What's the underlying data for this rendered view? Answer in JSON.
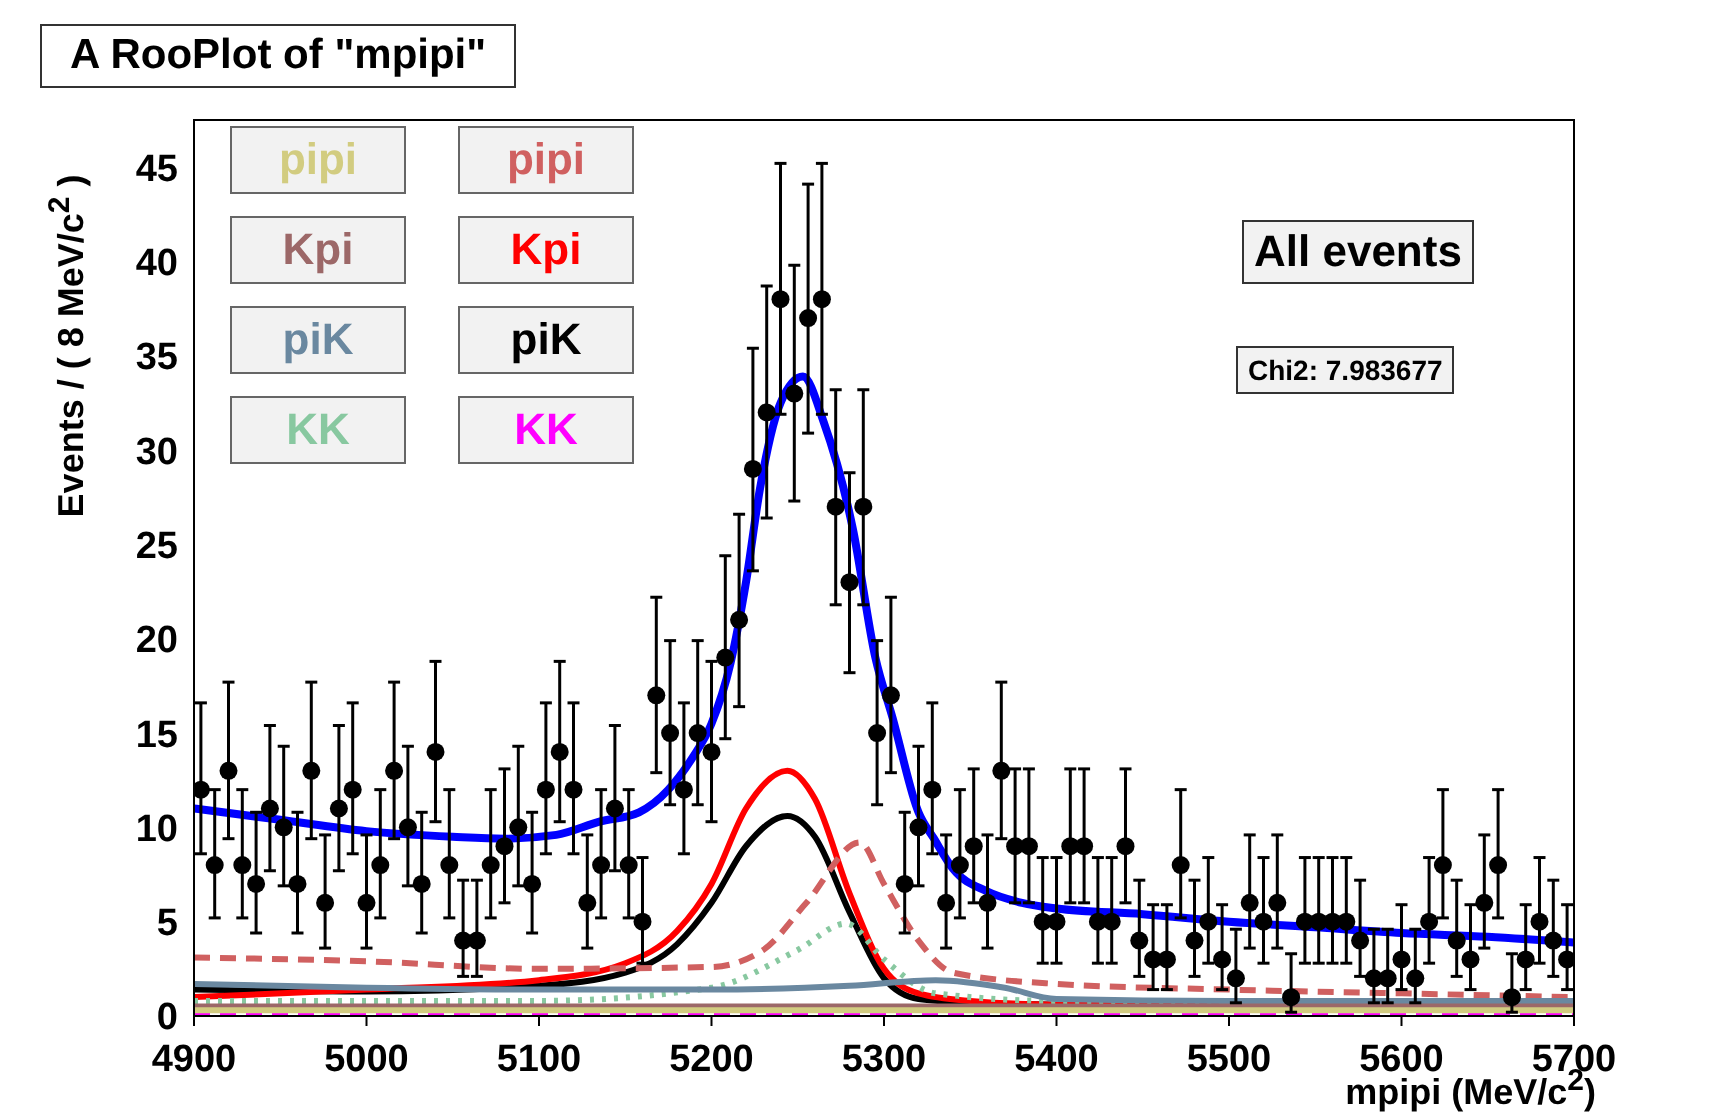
{
  "chart_data": {
    "type": "scatter",
    "title": "A RooPlot of \"mpipi\"",
    "xlabel": "mpipi (MeV/c$^{2}$)",
    "ylabel": "Events / ( 8 MeV/c$^{2}$ )",
    "xlim": [
      4900,
      5700
    ],
    "xticks": [
      4900,
      5000,
      5100,
      5200,
      5300,
      5400,
      5500,
      5600,
      5700
    ],
    "ylim": [
      0,
      47.5
    ],
    "yticks": [
      0,
      5,
      10,
      15,
      20,
      25,
      30,
      35,
      40,
      45
    ],
    "legend": "top left",
    "annotations": [
      "All events",
      "Chi2: 7.983677"
    ],
    "series": [
      {
        "marker": "circle",
        "color": "#000000",
        "x": [
          4904,
          4912,
          4920,
          4928,
          4936,
          4944,
          4952,
          4960,
          4968,
          4976,
          4984,
          4992,
          5000,
          5008,
          5016,
          5024,
          5032,
          5040,
          5048,
          5056,
          5064,
          5072,
          5080,
          5088,
          5096,
          5104,
          5112,
          5120,
          5128,
          5136,
          5144,
          5152,
          5160,
          5168,
          5176,
          5184,
          5192,
          5200,
          5208,
          5216,
          5224,
          5232,
          5240,
          5248,
          5256,
          5264,
          5272,
          5280,
          5288,
          5296,
          5304,
          5312,
          5320,
          5328,
          5336,
          5344,
          5352,
          5360,
          5368,
          5376,
          5384,
          5392,
          5400,
          5408,
          5416,
          5424,
          5432,
          5440,
          5448,
          5456,
          5464,
          5472,
          5480,
          5488,
          5496,
          5504,
          5512,
          5520,
          5528,
          5536,
          5544,
          5552,
          5560,
          5568,
          5576,
          5584,
          5592,
          5600,
          5608,
          5616,
          5624,
          5632,
          5640,
          5648,
          5656,
          5664,
          5672,
          5680,
          5688,
          5696
        ],
        "values": [
          12,
          8,
          13,
          8,
          7,
          11,
          10,
          7,
          13,
          6,
          11,
          12,
          6,
          8,
          13,
          10,
          7,
          14,
          8,
          4,
          4,
          8,
          9,
          10,
          7,
          12,
          14,
          12,
          6,
          8,
          11,
          8,
          5,
          17,
          15,
          12,
          15,
          14,
          19,
          21,
          29,
          32,
          38,
          33,
          37,
          38,
          27,
          23,
          27,
          15,
          17,
          7,
          10,
          12,
          6,
          8,
          9,
          6,
          13,
          9,
          9,
          5,
          5,
          9,
          9,
          5,
          5,
          9,
          4,
          3,
          3,
          8,
          4,
          5,
          3,
          2,
          6,
          5,
          6,
          1,
          5,
          5,
          5,
          5,
          4,
          2,
          2,
          3,
          2,
          5,
          8,
          4,
          3,
          6,
          8,
          1,
          3,
          5,
          4,
          3
        ],
        "errors": [
          [
            8.6,
            16.6
          ],
          [
            5.2,
            12.0
          ],
          [
            9.4,
            17.7
          ],
          [
            5.2,
            12.0
          ],
          [
            4.4,
            10.8
          ],
          [
            7.7,
            15.4
          ],
          [
            6.9,
            14.3
          ],
          [
            4.4,
            10.8
          ],
          [
            9.4,
            17.7
          ],
          [
            3.6,
            9.6
          ],
          [
            7.7,
            15.4
          ],
          [
            8.6,
            16.6
          ],
          [
            3.6,
            9.6
          ],
          [
            5.2,
            12.0
          ],
          [
            9.4,
            17.7
          ],
          [
            6.9,
            14.3
          ],
          [
            4.4,
            10.8
          ],
          [
            10.3,
            18.8
          ],
          [
            5.2,
            12.0
          ],
          [
            2.1,
            7.2
          ],
          [
            2.1,
            7.2
          ],
          [
            5.2,
            12.0
          ],
          [
            6.0,
            13.1
          ],
          [
            6.9,
            14.3
          ],
          [
            4.4,
            10.8
          ],
          [
            8.6,
            16.6
          ],
          [
            10.3,
            18.8
          ],
          [
            8.6,
            16.6
          ],
          [
            3.6,
            9.6
          ],
          [
            5.2,
            12.0
          ],
          [
            7.7,
            15.4
          ],
          [
            5.2,
            12.0
          ],
          [
            2.8,
            8.4
          ],
          [
            12.9,
            22.2
          ],
          [
            11.2,
            19.9
          ],
          [
            8.6,
            16.6
          ],
          [
            11.2,
            19.9
          ],
          [
            10.3,
            18.8
          ],
          [
            14.7,
            24.4
          ],
          [
            16.4,
            26.6
          ],
          [
            23.6,
            35.4
          ],
          [
            26.4,
            38.7
          ],
          [
            31.9,
            45.2
          ],
          [
            27.3,
            39.8
          ],
          [
            30.9,
            44.1
          ],
          [
            31.9,
            45.2
          ],
          [
            21.8,
            33.2
          ],
          [
            18.2,
            28.8
          ],
          [
            21.8,
            33.2
          ],
          [
            11.2,
            19.9
          ],
          [
            12.9,
            22.2
          ],
          [
            4.4,
            10.8
          ],
          [
            6.9,
            14.3
          ],
          [
            8.6,
            16.6
          ],
          [
            3.6,
            9.6
          ],
          [
            5.2,
            12.0
          ],
          [
            6.0,
            13.1
          ],
          [
            3.6,
            9.6
          ],
          [
            9.4,
            17.7
          ],
          [
            6.0,
            13.1
          ],
          [
            6.0,
            13.1
          ],
          [
            2.8,
            8.4
          ],
          [
            2.8,
            8.4
          ],
          [
            6.0,
            13.1
          ],
          [
            6.0,
            13.1
          ],
          [
            2.8,
            8.4
          ],
          [
            2.8,
            8.4
          ],
          [
            6.0,
            13.1
          ],
          [
            2.1,
            7.2
          ],
          [
            1.4,
            5.9
          ],
          [
            1.4,
            5.9
          ],
          [
            5.2,
            12.0
          ],
          [
            2.1,
            7.2
          ],
          [
            2.8,
            8.4
          ],
          [
            1.4,
            5.9
          ],
          [
            0.7,
            4.6
          ],
          [
            3.6,
            9.6
          ],
          [
            2.8,
            8.4
          ],
          [
            3.6,
            9.6
          ],
          [
            0.2,
            3.3
          ],
          [
            2.8,
            8.4
          ],
          [
            2.8,
            8.4
          ],
          [
            2.8,
            8.4
          ],
          [
            2.8,
            8.4
          ],
          [
            2.1,
            7.2
          ],
          [
            0.7,
            4.6
          ],
          [
            0.7,
            4.6
          ],
          [
            1.4,
            5.9
          ],
          [
            0.7,
            4.6
          ],
          [
            2.8,
            8.4
          ],
          [
            5.2,
            12.0
          ],
          [
            2.1,
            7.2
          ],
          [
            1.4,
            5.9
          ],
          [
            3.6,
            9.6
          ],
          [
            5.2,
            12.0
          ],
          [
            0.2,
            3.3
          ],
          [
            1.4,
            5.9
          ],
          [
            2.8,
            8.4
          ],
          [
            2.1,
            7.2
          ],
          [
            1.4,
            5.9
          ]
        ]
      },
      {
        "type": "line",
        "color": "#0000ff",
        "x": [
          4900,
          4950,
          5000,
          5050,
          5080,
          5110,
          5135,
          5158,
          5175,
          5189,
          5200,
          5211,
          5220,
          5228,
          5240,
          5253,
          5265,
          5282,
          5295,
          5305,
          5320,
          5329,
          5340,
          5360,
          5380,
          5400,
          5450,
          5500,
          5550,
          5600,
          5650,
          5700
        ],
        "values": [
          11.0,
          10.4,
          9.8,
          9.5,
          9.4,
          9.6,
          10.3,
          10.8,
          12,
          13.7,
          15.5,
          18.7,
          23,
          27.9,
          32.5,
          33.9,
          31.5,
          25.8,
          19,
          15.8,
          10.8,
          9.4,
          7.8,
          6.6,
          6.0,
          5.7,
          5.4,
          5.0,
          4.7,
          4.4,
          4.2,
          3.9
        ]
      },
      {
        "type": "line",
        "name": "pipi",
        "color": "#d2cc80",
        "line_style": "solid",
        "x": [
          4900,
          5700
        ],
        "values": [
          0.3,
          0.3
        ]
      },
      {
        "type": "line",
        "name": "Kpi",
        "color": "#9c6868",
        "line_style": "solid",
        "x": [
          4900,
          5700
        ],
        "values": [
          0.5,
          0.5
        ]
      },
      {
        "type": "line",
        "name": "piK",
        "color": "#6a88a0",
        "line_style": "solid",
        "x": [
          4900,
          5000,
          5100,
          5200,
          5280,
          5330,
          5370,
          5400,
          5500,
          5700
        ],
        "values": [
          1.7,
          1.5,
          1.4,
          1.4,
          1.6,
          1.9,
          1.5,
          0.9,
          0.8,
          0.8
        ]
      },
      {
        "type": "line",
        "name": "KK",
        "color": "#88c8a0",
        "line_style": "dotted",
        "x": [
          4900,
          5100,
          5200,
          5250,
          5278,
          5300,
          5330,
          5400,
          5700
        ],
        "values": [
          0.8,
          0.8,
          1.5,
          3.5,
          4.9,
          3.0,
          1.2,
          0.8,
          0.8
        ]
      },
      {
        "type": "line",
        "name": "pipi",
        "color": "#d06060",
        "line_style": "dashed",
        "x": [
          4900,
          5000,
          5100,
          5200,
          5230,
          5255,
          5286,
          5300,
          5320,
          5340,
          5400,
          5500,
          5600,
          5700
        ],
        "values": [
          3.1,
          2.9,
          2.5,
          2.6,
          3.5,
          6,
          9.2,
          7,
          4,
          2.3,
          1.7,
          1.4,
          1.2,
          1.0
        ]
      },
      {
        "type": "line",
        "name": "Kpi",
        "color": "#ff0000",
        "line_style": "solid",
        "x": [
          4900,
          5000,
          5100,
          5150,
          5180,
          5200,
          5220,
          5244,
          5260,
          5280,
          5300,
          5320,
          5350,
          5400,
          5700
        ],
        "values": [
          1.0,
          1.4,
          1.9,
          2.8,
          4.5,
          7,
          11,
          13,
          11.5,
          6.5,
          2.5,
          1.2,
          0.8,
          0.6,
          0.5
        ]
      },
      {
        "type": "line",
        "name": "piK",
        "color": "#000000",
        "line_style": "solid",
        "x": [
          4900,
          5000,
          5100,
          5150,
          5180,
          5200,
          5220,
          5244,
          5260,
          5280,
          5300,
          5320,
          5350,
          5400,
          5500,
          5700
        ],
        "values": [
          1.4,
          1.3,
          1.6,
          2.3,
          3.8,
          6,
          9,
          10.6,
          9.5,
          5.5,
          2,
          0.9,
          0.7,
          0.6,
          0.5,
          0.5
        ]
      },
      {
        "type": "line",
        "name": "KK",
        "color": "#ff00ff",
        "line_style": "dashed",
        "x": [
          4900,
          5700
        ],
        "values": [
          0.2,
          0.2
        ]
      }
    ]
  }
}
